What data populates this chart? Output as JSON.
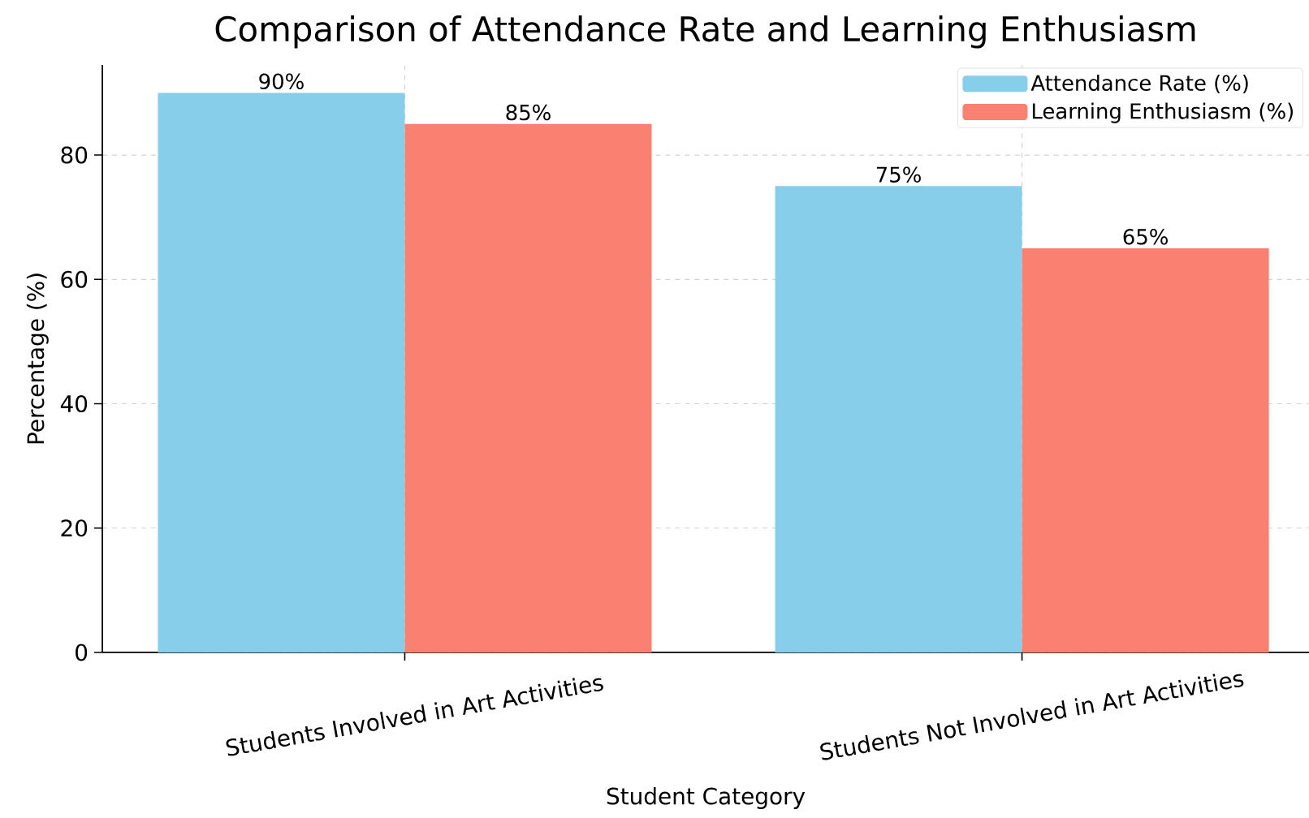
{
  "chart_data": {
    "type": "bar",
    "title": "Comparison of Attendance Rate and Learning Enthusiasm",
    "xlabel": "Student Category",
    "ylabel": "Percentage (%)",
    "categories": [
      "Students Involved in Art Activities",
      "Students Not Involved in Art Activities"
    ],
    "series": [
      {
        "name": "Attendance Rate (%)",
        "color": "#87ceeb",
        "values": [
          90,
          75
        ],
        "value_labels": [
          "90%",
          "75%"
        ]
      },
      {
        "name": "Learning Enthusiasm (%)",
        "color": "#fa8072",
        "values": [
          85,
          65
        ],
        "value_labels": [
          "85%",
          "65%"
        ]
      }
    ],
    "ylim": [
      0,
      94.5
    ],
    "yticks": [
      0,
      20,
      40,
      60,
      80
    ],
    "grid": true,
    "legend": "top right"
  }
}
